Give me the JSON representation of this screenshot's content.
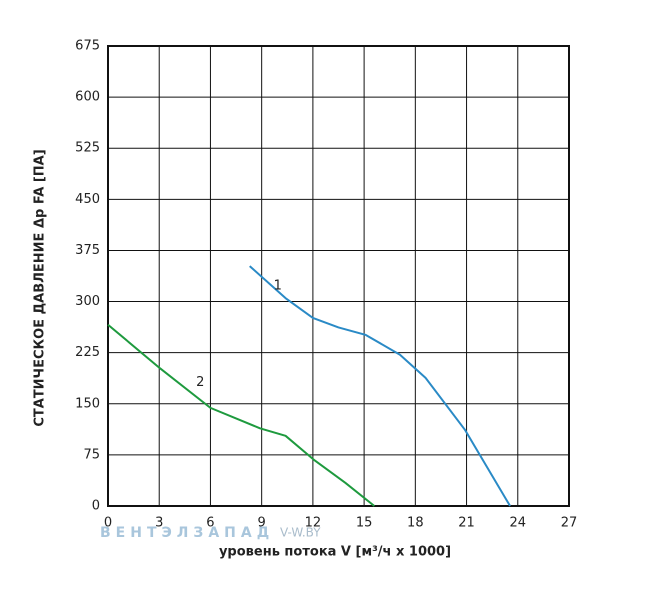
{
  "chart_data": {
    "type": "line",
    "x_label": "уровень потока V [м³/ч x 1000]",
    "y_label": "СТАТИЧЕСКОЕ ДАВЛЕНИЕ Δр FA [ПА]",
    "series": [
      {
        "name": "1",
        "color": "#2a8ac6",
        "x": [
          8.3,
          10.4,
          12.0,
          13.5,
          15.1,
          17.1,
          18.6,
          20.9,
          23.55
        ],
        "values": [
          352,
          305,
          276,
          262,
          251,
          222,
          188,
          112,
          0
        ]
      },
      {
        "name": "2",
        "color": "#1e9a3e",
        "x": [
          0,
          3.05,
          6.0,
          8.9,
          10.4,
          12.1,
          13.9,
          15.6
        ],
        "values": [
          266,
          202,
          144,
          114,
          103,
          67,
          34,
          0
        ]
      }
    ],
    "xlim": [
      0,
      27
    ],
    "xticks": [
      0,
      3,
      6,
      9,
      12,
      15,
      18,
      21,
      24,
      27
    ],
    "ylim": [
      0,
      675
    ],
    "yticks": [
      0,
      75,
      150,
      225,
      300,
      375,
      450,
      525,
      600,
      675
    ],
    "grid": true,
    "watermark": {
      "brand": "ВЕНТЭЛЗАПАД",
      "site": "V-W.BY"
    }
  }
}
